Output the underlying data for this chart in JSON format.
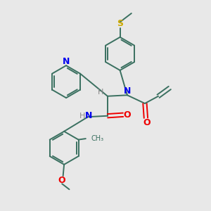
{
  "bg_color": "#e8e8e8",
  "bond_color": "#3a7060",
  "N_color": "#0000ee",
  "O_color": "#ee0000",
  "S_color": "#ccaa00",
  "H_color": "#888888",
  "figsize": [
    3.0,
    3.0
  ],
  "dpi": 100,
  "xlim": [
    0,
    10
  ],
  "ylim": [
    0,
    10
  ]
}
